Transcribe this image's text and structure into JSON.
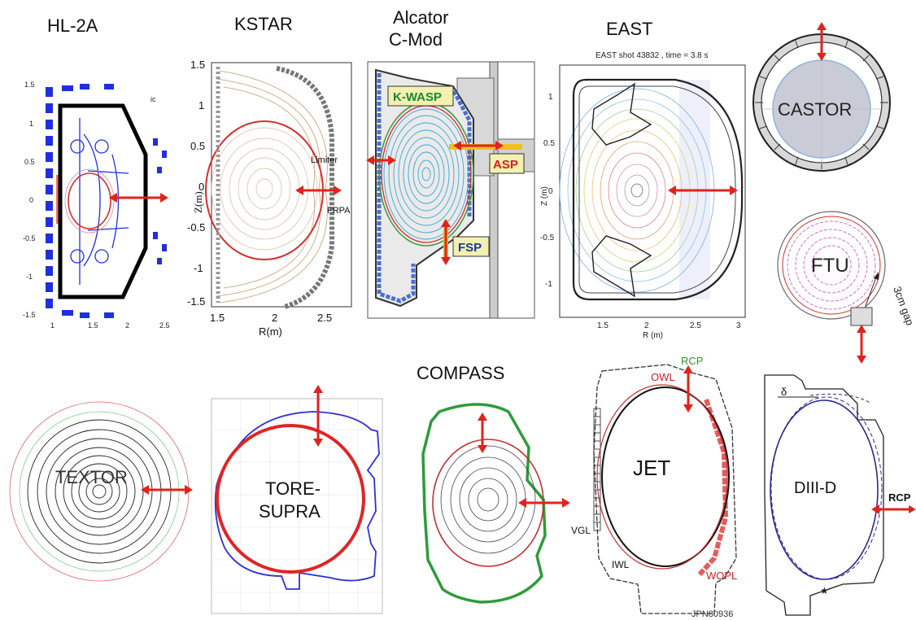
{
  "titles": {
    "hl2a": "HL-2A",
    "kstar": "KSTAR",
    "cmod_line1": "Alcator",
    "cmod_line2": "C-Mod",
    "east": "EAST",
    "compass": "COMPASS"
  },
  "hl2a": {
    "y_ticks": [
      "1.5",
      "1",
      "0.5",
      "0",
      "-0.5",
      "-1",
      "-1.5"
    ],
    "x_ticks": [
      "1",
      "1.5",
      "2",
      "2.5"
    ],
    "corner": "ic"
  },
  "kstar": {
    "y_ticks": [
      "1.5",
      "1",
      "0.5",
      "0",
      "-0.5",
      "-1",
      "-1.5"
    ],
    "x_ticks": [
      "1.5",
      "2",
      "2.5"
    ],
    "ylabel": "Z(m)",
    "xlabel": "R(m)",
    "limiter": "Limiter",
    "frpa": "FRPA"
  },
  "cmod": {
    "kwasp": "K-WASP",
    "asp": "ASP",
    "fsp": "FSP"
  },
  "east": {
    "plot_title": "EAST shot 43832 , time = 3.8 s",
    "y_ticks": [
      "1",
      "0.5",
      "0",
      "-0.5",
      "-1"
    ],
    "x_ticks": [
      "1.5",
      "2",
      "2.5",
      "3"
    ],
    "ylabel": "Z (m)",
    "xlabel": "R (m)"
  },
  "castor": {
    "label": "CASTOR"
  },
  "ftu": {
    "label": "FTU",
    "gap": "3cm gap"
  },
  "textor": {
    "label": "TEXTOR"
  },
  "toresupra": {
    "line1": "TORE-",
    "line2": "SUPRA"
  },
  "jet": {
    "label": "JET",
    "rcp": "RCP",
    "owl": "OWL",
    "vgl": "VGL",
    "iwl": "IWL",
    "wopl": "WOPL",
    "code": "JPN80936"
  },
  "diiid": {
    "label": "DIII-D",
    "rcp": "RCP",
    "delta": "δ"
  },
  "colors": {
    "arrow": "#e0231c",
    "separatrix": "#d83a2a",
    "wall_blue": "#2b3fd4",
    "compass_wall": "#2e9b3a",
    "cmod_flux": "#3aa6d8"
  }
}
